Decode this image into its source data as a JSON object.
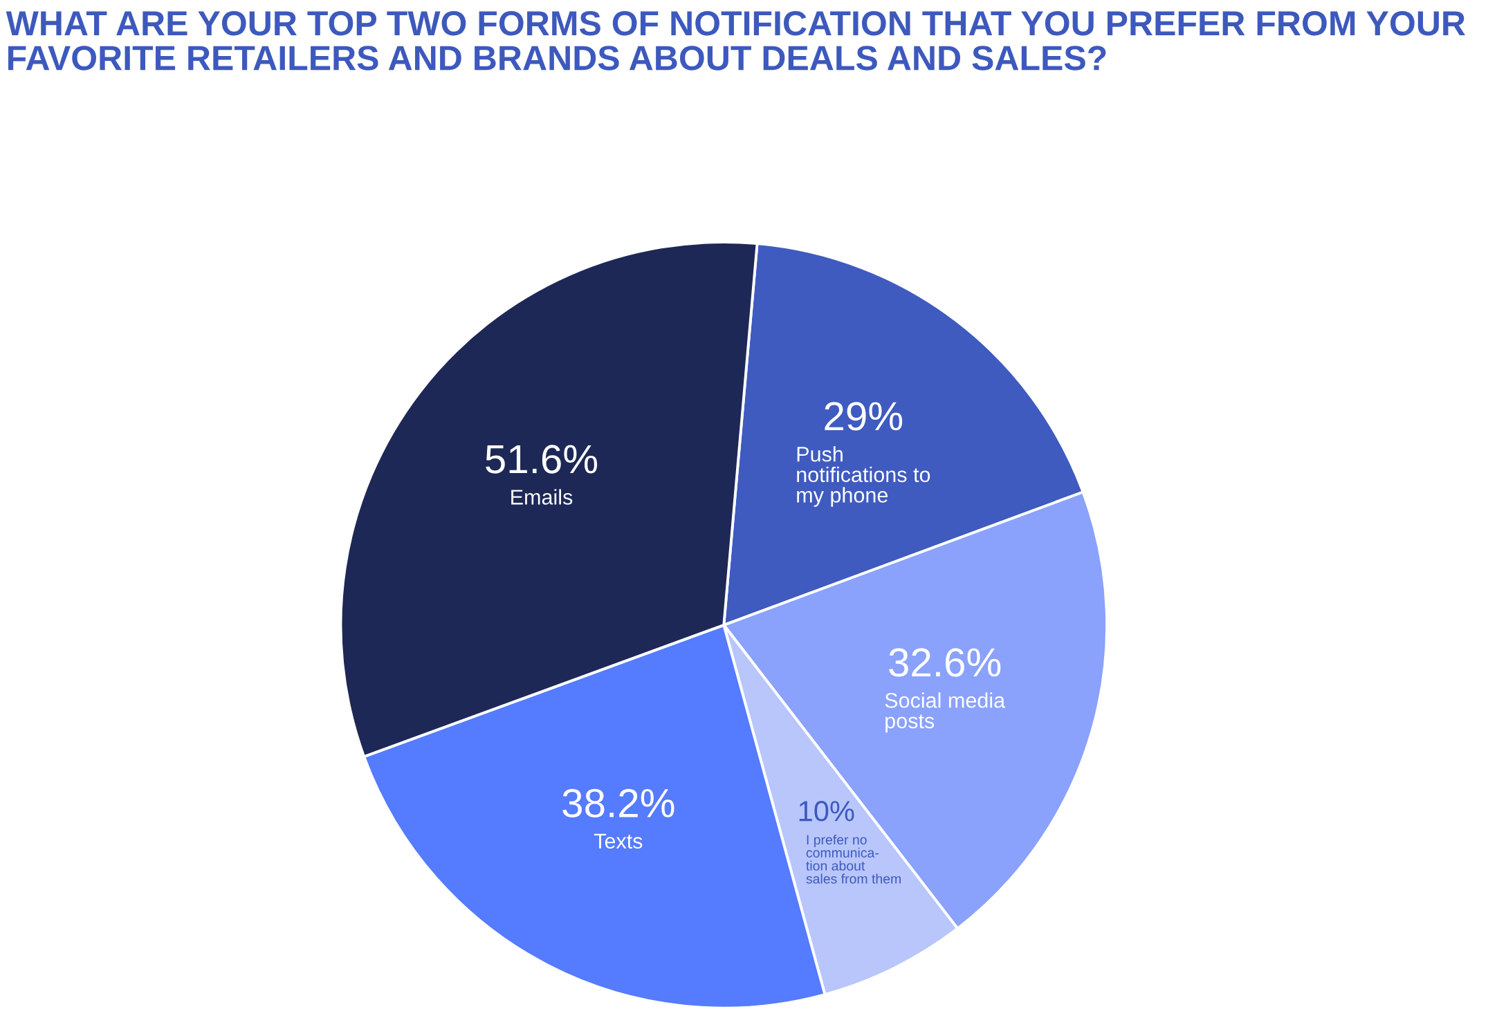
{
  "chart_data": {
    "type": "pie",
    "title": "WHAT ARE YOUR TOP TWO FORMS OF NOTIFICATION THAT YOU PREFER FROM YOUR FAVORITE RETAILERS AND BRANDS ABOUT DEALS AND SALES?",
    "categories": [
      "Push\nnotifications to\nmy phone",
      "Social media\nposts",
      "I prefer no\ncommunica-\ntion about\nsales from them",
      "Texts",
      "Emails"
    ],
    "values": [
      29,
      32.6,
      10,
      38.2,
      51.6
    ],
    "colors": [
      "#3f5bbf",
      "#8aa2fc",
      "#b8c6fc",
      "#557bff",
      "#1e2856"
    ],
    "value_labels": [
      "29%",
      "32.6%",
      "10%",
      "38.2%",
      "51.6%"
    ]
  }
}
